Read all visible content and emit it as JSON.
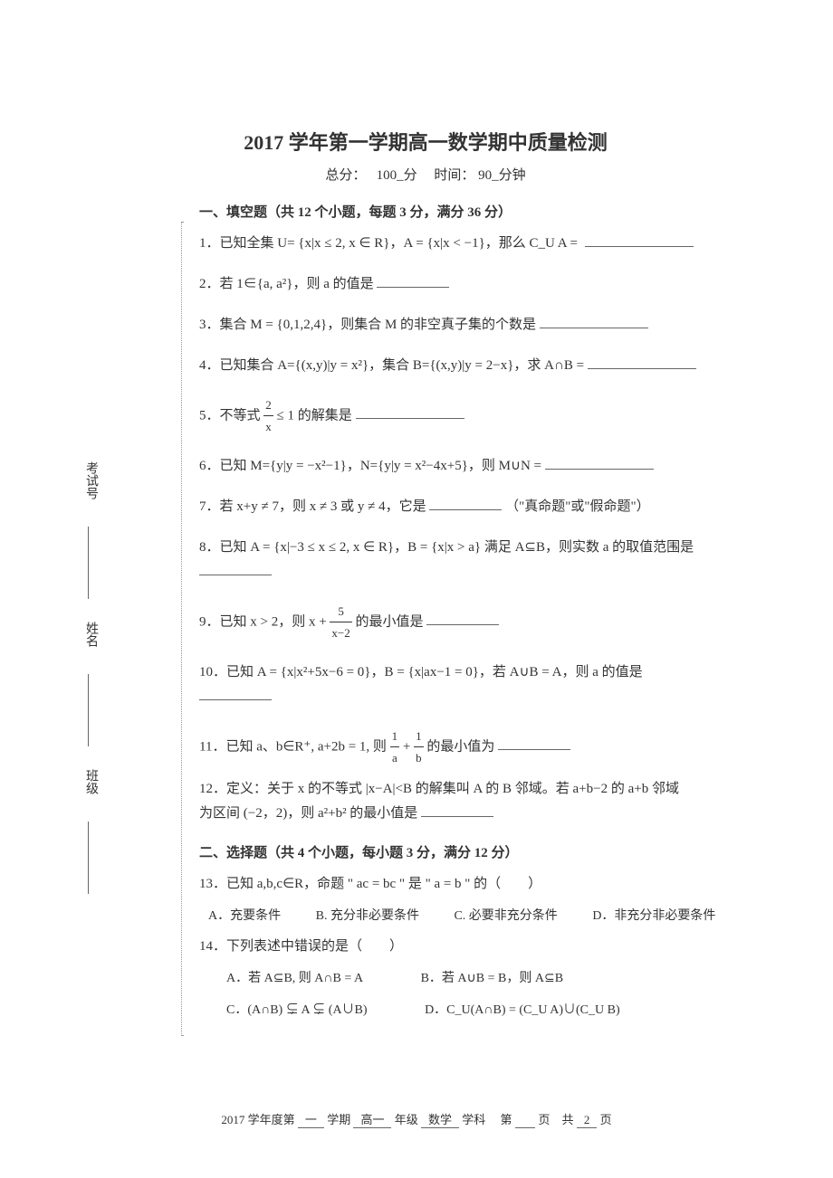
{
  "title": "2017 学年第一学期高一数学期中质量检测",
  "subtitle_prefix": "总分：",
  "subtitle_score": "100_分",
  "subtitle_time_label": "时间：",
  "subtitle_time": "90_分钟",
  "sidebar": {
    "class_label": "班级",
    "name_label": "姓名",
    "exam_id_label": "考试号"
  },
  "section1_header": "一、填空题（共 12 个小题，每题 3 分，满分 36 分）",
  "q1": "1．已知全集 U= {x|x ≤ 2, x ∈ R}，A = {x|x < −1}，那么 C_U A =",
  "q2": "2．若 1∈{a, a²}，则 a 的值是",
  "q3": "3．集合 M = {0,1,2,4}，则集合 M 的非空真子集的个数是",
  "q4": "4．已知集合 A={(x,y)|y = x²}，集合 B={(x,y)|y = 2−x}，求 A∩B =",
  "q5_prefix": "5．不等式 ",
  "q5_suffix": " ≤ 1 的解集是",
  "q5_num": "2",
  "q5_den": "x",
  "q6": "6．已知 M={y|y = −x²−1}，N={y|y = x²−4x+5}，则 M∪N =",
  "q7": "7．若 x+y ≠ 7，则 x ≠ 3 或 y ≠ 4，它是",
  "q7_suffix": "（\"真命题\"或\"假命题\"）",
  "q8": "8．已知 A = {x|−3 ≤ x ≤ 2, x ∈ R}，B = {x|x > a} 满足 A⊆B，则实数 a 的取值范围是",
  "q9_prefix": "9．已知 x > 2，则 x + ",
  "q9_num": "5",
  "q9_den": "x−2",
  "q9_suffix": " 的最小值是",
  "q10": "10．已知 A = {x|x²+5x−6 = 0}，B = {x|ax−1 = 0}，若 A∪B = A，则 a 的值是",
  "q11_prefix": "11．已知 a、b∈R⁺, a+2b = 1, 则 ",
  "q11_f1_num": "1",
  "q11_f1_den": "a",
  "q11_f2_num": "1",
  "q11_f2_den": "b",
  "q11_mid": " + ",
  "q11_suffix": " 的最小值为",
  "q12_line1": "12．定义：关于 x 的不等式 |x−A|<B 的解集叫 A 的 B 邻域。若 a+b−2 的 a+b 邻域",
  "q12_line2": "为区间 (−2，2)，则 a²+b² 的最小值是",
  "section2_header": "二、选择题（共 4 个小题，每小题 3 分，满分 12 分）",
  "q13": "13．已知 a,b,c∈R，命题 \" ac = bc \" 是 \" a = b \" 的（　　）",
  "q13_a": "A．充要条件",
  "q13_b": "B. 充分非必要条件",
  "q13_c": "C. 必要非充分条件",
  "q13_d": "D．非充分非必要条件",
  "q14": "14．下列表述中错误的是（　　）",
  "q14_a": "A．若 A⊆B, 则 A∩B = A",
  "q14_b": "B．若 A∪B = B，则 A⊆B",
  "q14_c": "C．(A∩B) ⊊ A ⊊ (A∪B)",
  "q14_d": "D．C_U(A∩B) = (C_U A)∪(C_U B)",
  "footer": {
    "year": "2017 学年度第",
    "semester": "一",
    "semester_label": "学期",
    "grade": "高一",
    "grade_label": "年级",
    "subject": "数学",
    "subject_label": "学科",
    "page_label": "第",
    "page_unit": "页",
    "total_label": "共",
    "total": "2",
    "total_unit": "页"
  },
  "colors": {
    "text": "#333333",
    "background": "#ffffff",
    "border": "#666666",
    "dotted": "#999999"
  }
}
